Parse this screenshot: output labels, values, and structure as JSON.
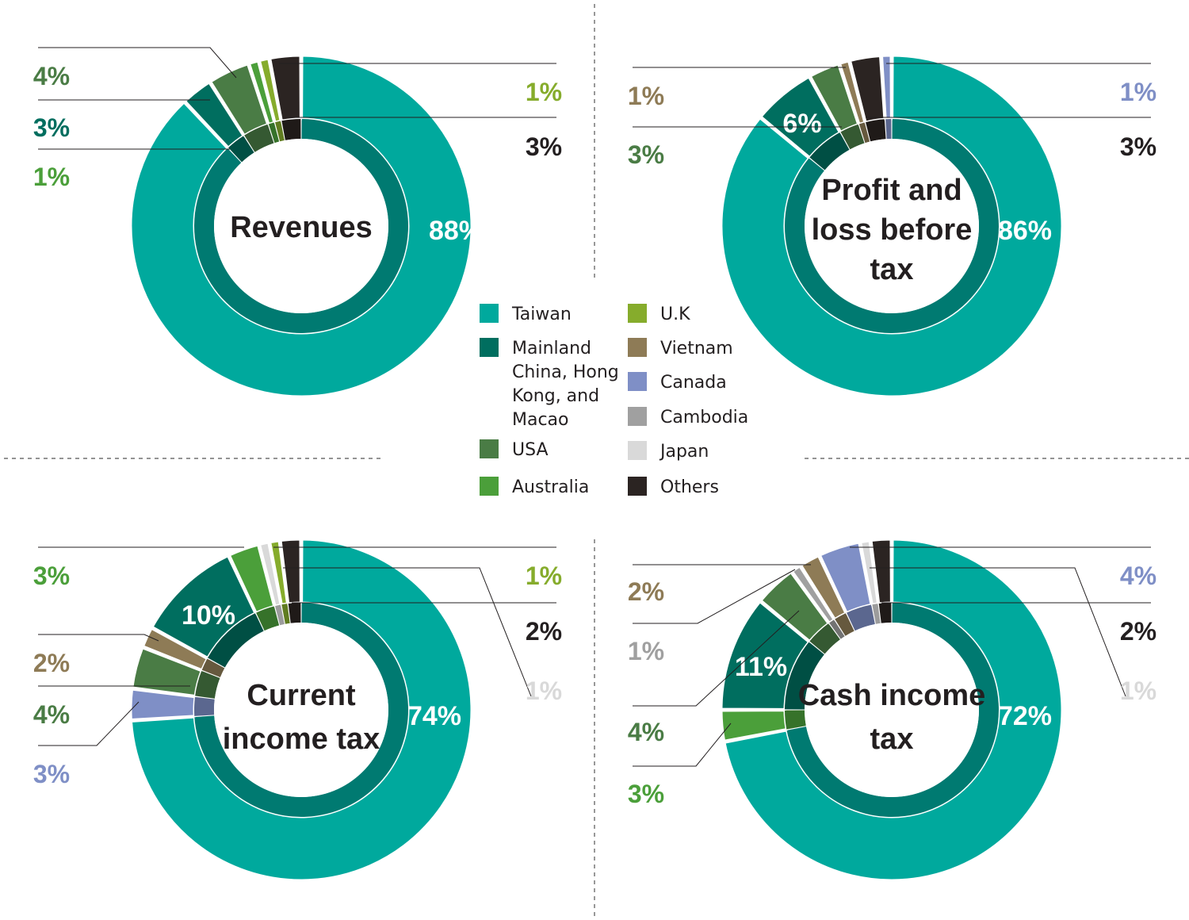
{
  "colors": {
    "Taiwan": "#00a99d",
    "Mainland China, Hong Kong, and Macao": "#006e5f",
    "USA": "#4a7c45",
    "Australia": "#4b9f3a",
    "U.K": "#86ac2c",
    "Vietnam": "#8e7b56",
    "Canada": "#7f8fc6",
    "Cambodia": "#a0a0a0",
    "Japan": "#d9d9d9",
    "Others": "#2b2422"
  },
  "legend": {
    "items": [
      {
        "label": "Taiwan",
        "key": "Taiwan"
      },
      {
        "label": "Mainland China, Hong Kong, and Macao",
        "key": "Mainland China, Hong Kong, and Macao",
        "lines": [
          "Mainland",
          "China, Hong",
          "Kong, and",
          "Macao"
        ]
      },
      {
        "label": "USA",
        "key": "USA"
      },
      {
        "label": "Australia",
        "key": "Australia"
      },
      {
        "label": "U.K",
        "key": "U.K"
      },
      {
        "label": "Vietnam",
        "key": "Vietnam"
      },
      {
        "label": "Canada",
        "key": "Canada"
      },
      {
        "label": "Cambodia",
        "key": "Cambodia"
      },
      {
        "label": "Japan",
        "key": "Japan"
      },
      {
        "label": "Others",
        "key": "Others"
      }
    ]
  },
  "chart_data": [
    {
      "type": "pie",
      "title": "Revenues",
      "title_lines": [
        "Revenues"
      ],
      "slices": [
        {
          "category": "Taiwan",
          "value": 88,
          "label": "88%"
        },
        {
          "category": "Mainland China, Hong Kong, and Macao",
          "value": 3,
          "label": "3%"
        },
        {
          "category": "USA",
          "value": 4,
          "label": "4%"
        },
        {
          "category": "Australia",
          "value": 1,
          "label": "1%"
        },
        {
          "category": "U.K",
          "value": 1,
          "label": "1%"
        },
        {
          "category": "Others",
          "value": 3,
          "label": "3%"
        }
      ]
    },
    {
      "type": "pie",
      "title": "Profit and loss before tax",
      "title_lines": [
        "Profit and",
        "loss before",
        "tax"
      ],
      "slices": [
        {
          "category": "Taiwan",
          "value": 86,
          "label": "86%"
        },
        {
          "category": "Mainland China, Hong Kong, and Macao",
          "value": 6,
          "label": "6%"
        },
        {
          "category": "USA",
          "value": 3,
          "label": "3%"
        },
        {
          "category": "Vietnam",
          "value": 1,
          "label": "1%"
        },
        {
          "category": "Others",
          "value": 3,
          "label": "3%"
        },
        {
          "category": "Canada",
          "value": 1,
          "label": "1%"
        }
      ]
    },
    {
      "type": "pie",
      "title": "Current income tax",
      "title_lines": [
        "Current",
        "income tax"
      ],
      "slices": [
        {
          "category": "Taiwan",
          "value": 74,
          "label": "74%"
        },
        {
          "category": "Canada",
          "value": 3,
          "label": "3%"
        },
        {
          "category": "USA",
          "value": 4,
          "label": "4%"
        },
        {
          "category": "Vietnam",
          "value": 2,
          "label": "2%"
        },
        {
          "category": "Mainland China, Hong Kong, and Macao",
          "value": 10,
          "label": "10%"
        },
        {
          "category": "Australia",
          "value": 3,
          "label": "3%"
        },
        {
          "category": "Japan",
          "value": 1,
          "label": "1%"
        },
        {
          "category": "U.K",
          "value": 1,
          "label": "1%"
        },
        {
          "category": "Others",
          "value": 2,
          "label": "2%"
        }
      ]
    },
    {
      "type": "pie",
      "title": "Cash income tax",
      "title_lines": [
        "Cash income",
        "tax"
      ],
      "slices": [
        {
          "category": "Taiwan",
          "value": 72,
          "label": "72%"
        },
        {
          "category": "Australia",
          "value": 3,
          "label": "3%"
        },
        {
          "category": "Mainland China, Hong Kong, and Macao",
          "value": 11,
          "label": "11%"
        },
        {
          "category": "USA",
          "value": 4,
          "label": "4%"
        },
        {
          "category": "Cambodia",
          "value": 1,
          "label": "1%"
        },
        {
          "category": "Vietnam",
          "value": 2,
          "label": "2%"
        },
        {
          "category": "Canada",
          "value": 4,
          "label": "4%"
        },
        {
          "category": "Japan",
          "value": 1,
          "label": "1%"
        },
        {
          "category": "Others",
          "value": 2,
          "label": "2%"
        }
      ]
    }
  ]
}
